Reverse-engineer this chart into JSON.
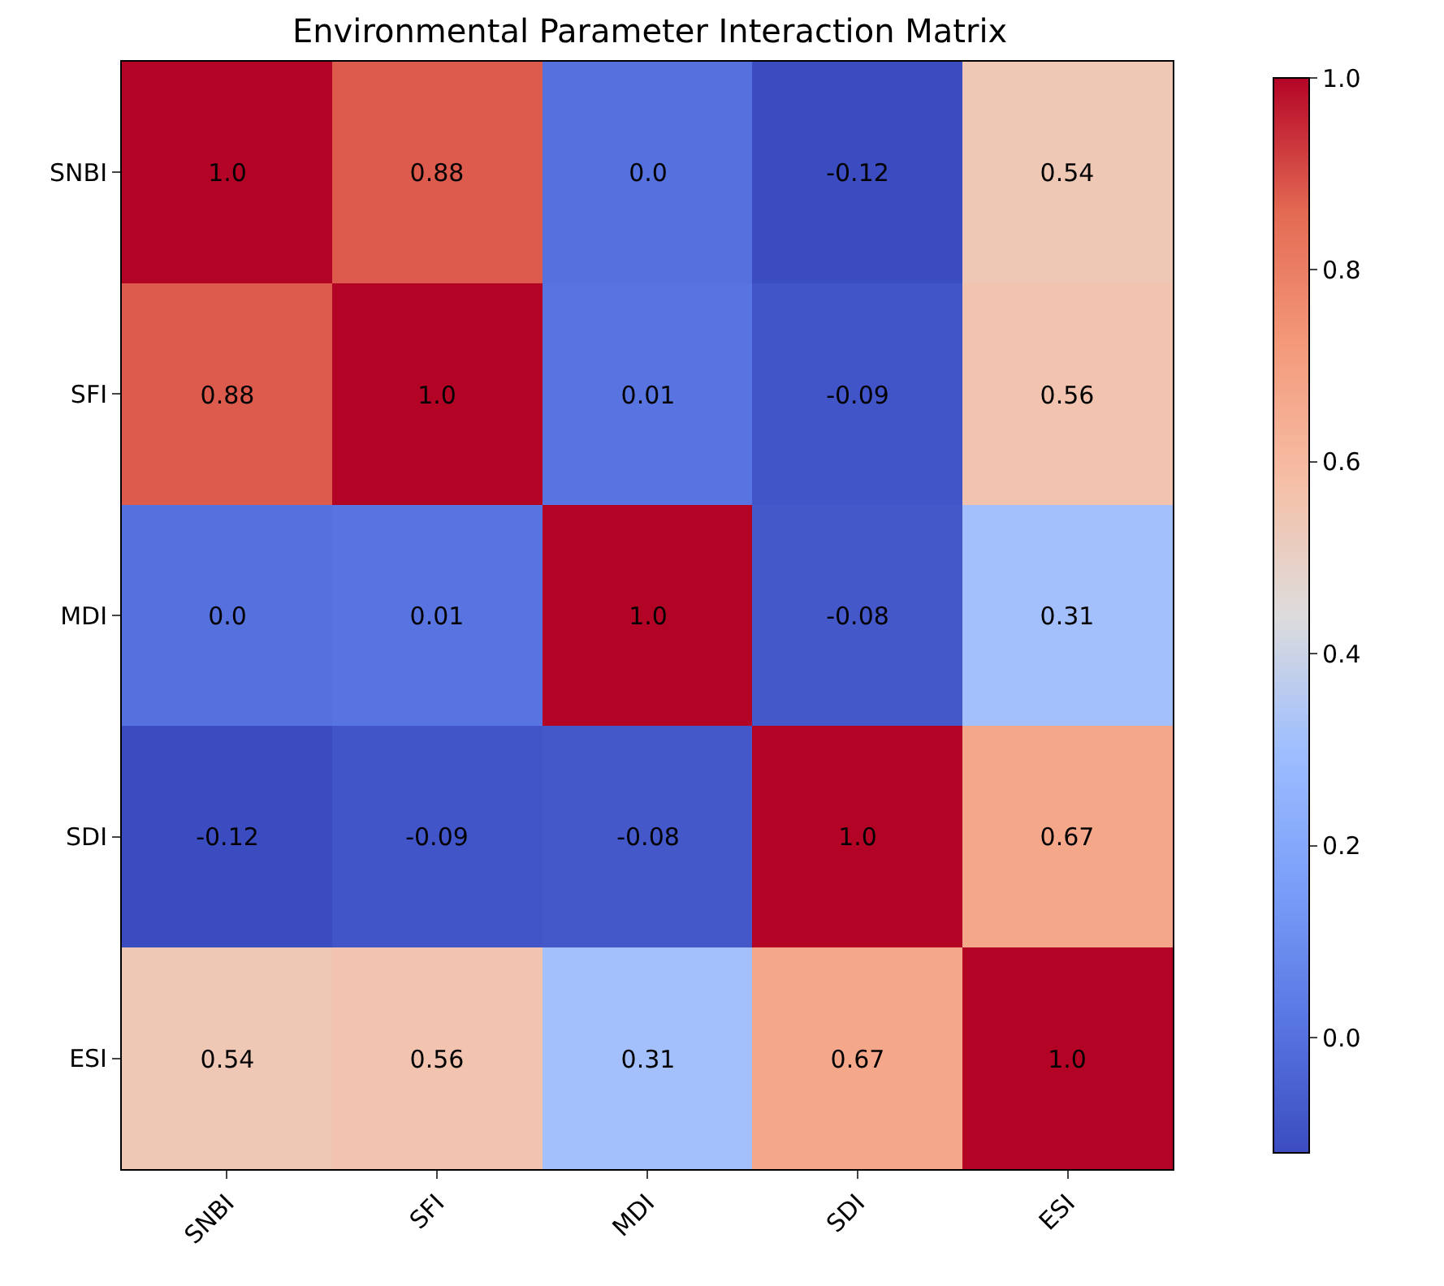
{
  "chart_data": {
    "type": "heatmap",
    "title": "Environmental Parameter Interaction Matrix",
    "categories": [
      "SNBI",
      "SFI",
      "MDI",
      "SDI",
      "ESI"
    ],
    "y_categories": [
      "SNBI",
      "SFI",
      "MDI",
      "SDI",
      "ESI"
    ],
    "cells": [
      [
        1.0,
        0.88,
        0.0,
        -0.12,
        0.54
      ],
      [
        0.88,
        1.0,
        0.01,
        -0.09,
        0.56
      ],
      [
        0.0,
        0.01,
        1.0,
        -0.08,
        0.31
      ],
      [
        -0.12,
        -0.09,
        -0.08,
        1.0,
        0.67
      ],
      [
        0.54,
        0.56,
        0.31,
        0.67,
        1.0
      ]
    ],
    "cell_labels": [
      [
        "1.0",
        "0.88",
        "0.0",
        "-0.12",
        "0.54"
      ],
      [
        "0.88",
        "1.0",
        "0.01",
        "-0.09",
        "0.56"
      ],
      [
        "0.0",
        "0.01",
        "1.0",
        "-0.08",
        "0.31"
      ],
      [
        "-0.12",
        "-0.09",
        "-0.08",
        "1.0",
        "0.67"
      ],
      [
        "0.54",
        "0.56",
        "0.31",
        "0.67",
        "1.0"
      ]
    ],
    "clim": [
      -0.12,
      1.0
    ],
    "cticks": [
      {
        "value": 0.0,
        "label": "0.0"
      },
      {
        "value": 0.2,
        "label": "0.2"
      },
      {
        "value": 0.4,
        "label": "0.4"
      },
      {
        "value": 0.6,
        "label": "0.6"
      },
      {
        "value": 0.8,
        "label": "0.8"
      },
      {
        "value": 1.0,
        "label": "1.0"
      }
    ]
  }
}
